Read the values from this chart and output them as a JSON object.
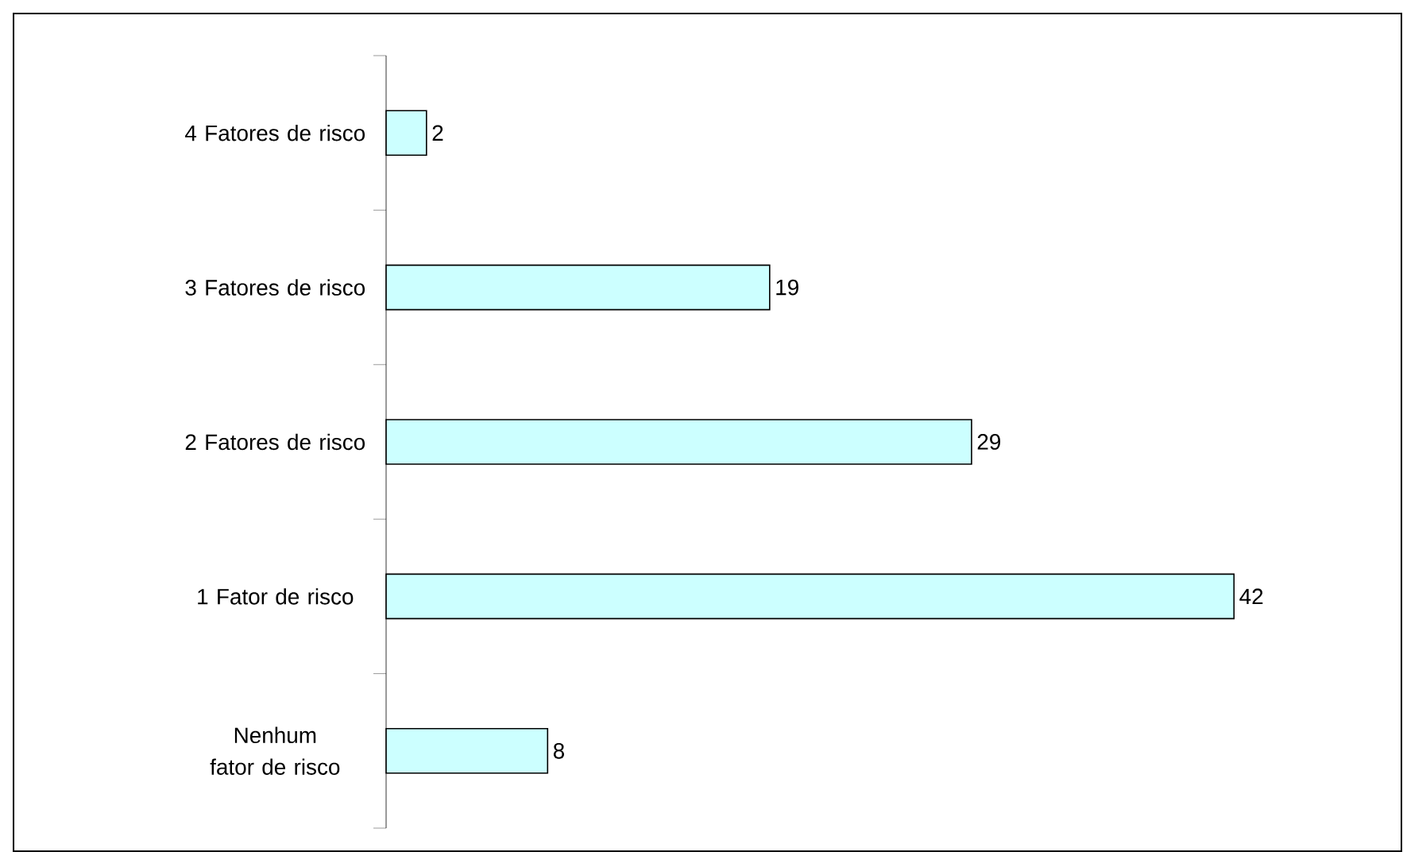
{
  "chart_data": {
    "type": "bar",
    "orientation": "horizontal",
    "data_labels": true,
    "categories": [
      "4 Fatores de risco",
      "3 Fatores de risco",
      "2 Fatores de risco",
      "1 Fator de risco",
      "Nenhum fator de risco"
    ],
    "values": [
      2,
      19,
      29,
      42,
      8
    ],
    "color": "#ccffff"
  }
}
